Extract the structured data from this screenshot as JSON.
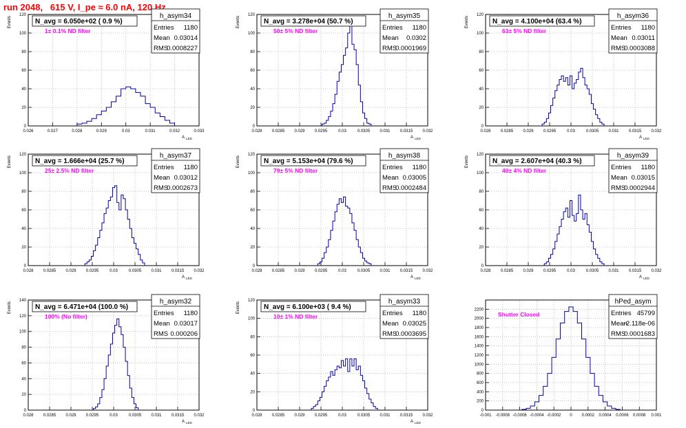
{
  "page": {
    "title": "run 2048,   615 V, I_pe ≈ 6.0 nA, 120 Hz",
    "colors": {
      "hist_line": "#0000aa",
      "note": "#ff00ff",
      "title": "#ff0000",
      "grid": "#b4b4b4"
    }
  },
  "stat_labels": [
    "Entries",
    "Mean",
    "RMS"
  ],
  "chart_data": [
    {
      "type": "histogram",
      "name": "h_asym34",
      "nlabel": "N_avg = 6.050e+02 ( 0.9 %)",
      "note": "1± 0.1% ND filter",
      "entries": "1180",
      "mean": "0.03014",
      "rms": "0.0008227",
      "xlim": [
        0.026,
        0.033
      ],
      "ylim": [
        0,
        120
      ],
      "xticks": [
        "0.026",
        "0.027",
        "0.028",
        "0.029",
        "0.03",
        "0.031",
        "0.032",
        "0.033"
      ],
      "xtick_values": [
        0.026,
        0.027,
        0.028,
        0.029,
        0.03,
        0.031,
        0.032,
        0.033
      ],
      "yticks": [
        "0",
        "20",
        "40",
        "60",
        "80",
        "100",
        "120"
      ],
      "ytick_values": [
        0,
        20,
        40,
        60,
        80,
        100,
        120
      ],
      "xlabel": "A",
      "xlabel_sub": "LED",
      "ylabel": "Events",
      "x": [
        0.0281,
        0.0283,
        0.0285,
        0.0287,
        0.0289,
        0.0291,
        0.0293,
        0.0295,
        0.0297,
        0.0299,
        0.0301,
        0.0303,
        0.0305,
        0.0307,
        0.0309,
        0.0311,
        0.0313,
        0.0315,
        0.0317,
        0.0319
      ],
      "values": [
        2,
        3,
        5,
        8,
        12,
        16,
        20,
        26,
        32,
        40,
        42,
        40,
        36,
        32,
        24,
        20,
        14,
        10,
        6,
        3
      ]
    },
    {
      "type": "histogram",
      "name": "h_asym35",
      "nlabel": "N_avg = 3.278e+04 (50.7 %)",
      "note": "50± 5% ND filter",
      "entries": "1180",
      "mean": "0.0302",
      "rms": "0.0001969",
      "xlim": [
        0.028,
        0.032
      ],
      "ylim": [
        0,
        120
      ],
      "xticks": [
        "0.028",
        "0.0285",
        "0.029",
        "0.0295",
        "0.03",
        "0.0305",
        "0.031",
        "0.0315",
        "0.032"
      ],
      "xtick_values": [
        0.028,
        0.0285,
        0.029,
        0.0295,
        0.03,
        0.0305,
        0.031,
        0.0315,
        0.032
      ],
      "yticks": [
        "0",
        "20",
        "40",
        "60",
        "80",
        "100",
        "120"
      ],
      "ytick_values": [
        0,
        20,
        40,
        60,
        80,
        100,
        120
      ],
      "xlabel": "A",
      "xlabel_sub": "LED",
      "ylabel": "Events",
      "x": [
        0.02955,
        0.0296,
        0.02965,
        0.0297,
        0.02975,
        0.0298,
        0.02985,
        0.0299,
        0.02995,
        0.03,
        0.03005,
        0.0301,
        0.03015,
        0.0302,
        0.03025,
        0.0303,
        0.03035,
        0.0304,
        0.03045,
        0.0305,
        0.03055,
        0.0306,
        0.03065
      ],
      "values": [
        2,
        3,
        6,
        10,
        16,
        24,
        34,
        48,
        58,
        66,
        76,
        84,
        100,
        108,
        88,
        82,
        66,
        44,
        26,
        14,
        8,
        3,
        2
      ]
    },
    {
      "type": "histogram",
      "name": "h_asym36",
      "nlabel": "N_avg = 4.100e+04 (63.4 %)",
      "note": "63± 5% ND filter",
      "entries": "1180",
      "mean": "0.03011",
      "rms": "0.0003088",
      "xlim": [
        0.028,
        0.032
      ],
      "ylim": [
        0,
        120
      ],
      "xticks": [
        "0.028",
        "0.0285",
        "0.029",
        "0.0295",
        "0.03",
        "0.0305",
        "0.031",
        "0.0315",
        "0.032"
      ],
      "xtick_values": [
        0.028,
        0.0285,
        0.029,
        0.0295,
        0.03,
        0.0305,
        0.031,
        0.0315,
        0.032
      ],
      "yticks": [
        "0",
        "20",
        "40",
        "60",
        "80",
        "100",
        "120"
      ],
      "ytick_values": [
        0,
        20,
        40,
        60,
        80,
        100,
        120
      ],
      "xlabel": "A",
      "xlabel_sub": "LED",
      "ylabel": "Events",
      "x": [
        0.02935,
        0.0294,
        0.02945,
        0.0295,
        0.02955,
        0.0296,
        0.02965,
        0.0297,
        0.02975,
        0.0298,
        0.02985,
        0.0299,
        0.02995,
        0.03,
        0.03005,
        0.0301,
        0.03015,
        0.0302,
        0.03025,
        0.0303,
        0.03035,
        0.0304,
        0.03045,
        0.0305,
        0.03055,
        0.0306,
        0.03065,
        0.0307,
        0.03075
      ],
      "values": [
        2,
        4,
        8,
        14,
        22,
        30,
        38,
        44,
        50,
        54,
        48,
        52,
        44,
        54,
        40,
        46,
        50,
        58,
        62,
        52,
        44,
        40,
        34,
        24,
        18,
        12,
        8,
        4,
        2
      ]
    },
    {
      "type": "histogram",
      "name": "h_asym37",
      "nlabel": "N_avg = 1.666e+04 (25.7 %)",
      "note": "25± 2.5% ND filter",
      "entries": "1180",
      "mean": "0.03012",
      "rms": "0.0002673",
      "xlim": [
        0.028,
        0.032
      ],
      "ylim": [
        0,
        120
      ],
      "xticks": [
        "0.028",
        "0.0285",
        "0.029",
        "0.0295",
        "0.03",
        "0.0305",
        "0.031",
        "0.0315",
        "0.032"
      ],
      "xtick_values": [
        0.028,
        0.0285,
        0.029,
        0.0295,
        0.03,
        0.0305,
        0.031,
        0.0315,
        0.032
      ],
      "yticks": [
        "0",
        "20",
        "40",
        "60",
        "80",
        "100",
        "120"
      ],
      "ytick_values": [
        0,
        20,
        40,
        60,
        80,
        100,
        120
      ],
      "xlabel": "A",
      "xlabel_sub": "LED",
      "ylabel": "Events",
      "x": [
        0.02935,
        0.0294,
        0.02945,
        0.0295,
        0.02955,
        0.0296,
        0.02965,
        0.0297,
        0.02975,
        0.0298,
        0.02985,
        0.0299,
        0.02995,
        0.03,
        0.03005,
        0.0301,
        0.03015,
        0.0302,
        0.03025,
        0.0303,
        0.03035,
        0.0304,
        0.03045,
        0.0305,
        0.03055,
        0.0306,
        0.03065,
        0.0307
      ],
      "values": [
        2,
        4,
        6,
        10,
        16,
        22,
        30,
        38,
        46,
        56,
        62,
        70,
        74,
        84,
        86,
        68,
        60,
        76,
        72,
        60,
        50,
        40,
        30,
        24,
        18,
        12,
        6,
        3
      ]
    },
    {
      "type": "histogram",
      "name": "h_asym38",
      "nlabel": "N_avg = 5.153e+04 (79.6 %)",
      "note": "79± 5% ND filter",
      "entries": "1180",
      "mean": "0.03005",
      "rms": "0.0002484",
      "xlim": [
        0.028,
        0.032
      ],
      "ylim": [
        0,
        120
      ],
      "xticks": [
        "0.028",
        "0.0285",
        "0.029",
        "0.0295",
        "0.03",
        "0.0305",
        "0.031",
        "0.0315",
        "0.032"
      ],
      "xtick_values": [
        0.028,
        0.0285,
        0.029,
        0.0295,
        0.03,
        0.0305,
        0.031,
        0.0315,
        0.032
      ],
      "yticks": [
        "0",
        "20",
        "40",
        "60",
        "80",
        "100",
        "120"
      ],
      "ytick_values": [
        0,
        20,
        40,
        60,
        80,
        100,
        120
      ],
      "xlabel": "A",
      "xlabel_sub": "LED",
      "ylabel": "Events",
      "x": [
        0.02945,
        0.0295,
        0.02955,
        0.0296,
        0.02965,
        0.0297,
        0.02975,
        0.0298,
        0.02985,
        0.0299,
        0.02995,
        0.03,
        0.03005,
        0.0301,
        0.03015,
        0.0302,
        0.03025,
        0.0303,
        0.03035,
        0.0304,
        0.03045,
        0.0305,
        0.03055,
        0.0306,
        0.03065
      ],
      "values": [
        2,
        4,
        8,
        14,
        20,
        28,
        38,
        48,
        58,
        66,
        72,
        68,
        74,
        64,
        62,
        56,
        46,
        38,
        28,
        20,
        14,
        8,
        5,
        3,
        2
      ]
    },
    {
      "type": "histogram",
      "name": "h_asym39",
      "nlabel": "N_avg = 2.607e+04 (40.3 %)",
      "note": "40± 4% ND filter",
      "entries": "1180",
      "mean": "0.03015",
      "rms": "0.0002944",
      "xlim": [
        0.028,
        0.032
      ],
      "ylim": [
        0,
        120
      ],
      "xticks": [
        "0.028",
        "0.0285",
        "0.029",
        "0.0295",
        "0.03",
        "0.0305",
        "0.031",
        "0.0315",
        "0.032"
      ],
      "xtick_values": [
        0.028,
        0.0285,
        0.029,
        0.0295,
        0.03,
        0.0305,
        0.031,
        0.0315,
        0.032
      ],
      "yticks": [
        "0",
        "20",
        "40",
        "60",
        "80",
        "100",
        "120"
      ],
      "ytick_values": [
        0,
        20,
        40,
        60,
        80,
        100,
        120
      ],
      "xlabel": "A",
      "xlabel_sub": "LED",
      "ylabel": "Events",
      "x": [
        0.0294,
        0.02945,
        0.0295,
        0.02955,
        0.0296,
        0.02965,
        0.0297,
        0.02975,
        0.0298,
        0.02985,
        0.0299,
        0.02995,
        0.03,
        0.03005,
        0.0301,
        0.03015,
        0.0302,
        0.03025,
        0.0303,
        0.03035,
        0.0304,
        0.03045,
        0.0305,
        0.03055,
        0.0306,
        0.03065,
        0.0307,
        0.03075
      ],
      "values": [
        2,
        4,
        8,
        12,
        18,
        26,
        34,
        42,
        50,
        58,
        62,
        52,
        70,
        54,
        48,
        56,
        76,
        60,
        50,
        56,
        44,
        36,
        26,
        18,
        12,
        8,
        4,
        2
      ]
    },
    {
      "type": "histogram",
      "name": "h_asym32",
      "nlabel": "N_avg = 6.471e+04 (100.0 %)",
      "note": "100% (No filter)",
      "entries": "1180",
      "mean": "0.03017",
      "rms": "0.000206",
      "xlim": [
        0.028,
        0.032
      ],
      "ylim": [
        0,
        140
      ],
      "xticks": [
        "0.028",
        "0.0285",
        "0.029",
        "0.0295",
        "0.03",
        "0.0305",
        "0.031",
        "0.0315",
        "0.032"
      ],
      "xtick_values": [
        0.028,
        0.0285,
        0.029,
        0.0295,
        0.03,
        0.0305,
        0.031,
        0.0315,
        0.032
      ],
      "yticks": [
        "0",
        "20",
        "40",
        "60",
        "80",
        "100",
        "120",
        "140"
      ],
      "ytick_values": [
        0,
        20,
        40,
        60,
        80,
        100,
        120,
        140
      ],
      "xlabel": "A",
      "xlabel_sub": "LED",
      "ylabel": "Events",
      "x": [
        0.02955,
        0.0296,
        0.02965,
        0.0297,
        0.02975,
        0.0298,
        0.02985,
        0.0299,
        0.02995,
        0.03,
        0.03005,
        0.0301,
        0.03015,
        0.0302,
        0.03025,
        0.0303,
        0.03035,
        0.0304,
        0.03045,
        0.0305,
        0.03055
      ],
      "values": [
        2,
        4,
        8,
        16,
        26,
        40,
        56,
        70,
        84,
        98,
        108,
        116,
        106,
        96,
        80,
        62,
        44,
        28,
        16,
        8,
        3
      ]
    },
    {
      "type": "histogram",
      "name": "h_asym33",
      "nlabel": "N_avg = 6.100e+03 ( 9.4 %)",
      "note": "10± 1% ND filter",
      "entries": "1180",
      "mean": "0.03025",
      "rms": "0.0003695",
      "xlim": [
        0.028,
        0.032
      ],
      "ylim": [
        0,
        120
      ],
      "xticks": [
        "0.028",
        "0.0285",
        "0.029",
        "0.0295",
        "0.03",
        "0.0305",
        "0.031",
        "0.0315",
        "0.032"
      ],
      "xtick_values": [
        0.028,
        0.0285,
        0.029,
        0.0295,
        0.03,
        0.0305,
        0.031,
        0.0315,
        0.032
      ],
      "yticks": [
        "0",
        "20",
        "40",
        "60",
        "80",
        "100",
        "120"
      ],
      "ytick_values": [
        0,
        20,
        40,
        60,
        80,
        100,
        120
      ],
      "xlabel": "A",
      "xlabel_sub": "LED",
      "ylabel": "Events",
      "x": [
        0.0293,
        0.02935,
        0.0294,
        0.02945,
        0.0295,
        0.02955,
        0.0296,
        0.02965,
        0.0297,
        0.02975,
        0.0298,
        0.02985,
        0.0299,
        0.02995,
        0.03,
        0.03005,
        0.0301,
        0.03015,
        0.0302,
        0.03025,
        0.0303,
        0.03035,
        0.0304,
        0.03045,
        0.0305,
        0.03055,
        0.0306,
        0.03065,
        0.0307,
        0.03075,
        0.0308
      ],
      "values": [
        2,
        4,
        6,
        10,
        14,
        20,
        26,
        32,
        36,
        42,
        38,
        44,
        48,
        46,
        54,
        48,
        56,
        42,
        56,
        48,
        56,
        44,
        48,
        38,
        32,
        24,
        18,
        12,
        8,
        4,
        2
      ]
    },
    {
      "type": "histogram",
      "name": "hPed_asym",
      "nlabel": "",
      "note": "Shutter Closed",
      "entries": "45799",
      "mean": "-2.118e-06",
      "rms": "0.0001683",
      "xlim": [
        -0.001,
        0.001
      ],
      "ylim": [
        0,
        2400
      ],
      "xticks": [
        "-0.001",
        "-0.0008",
        "-0.0006",
        "-0.0004",
        "-0.0002",
        "0",
        "0.0002",
        "0.0004",
        "0.0006",
        "0.0008",
        "0.001"
      ],
      "xtick_values": [
        -0.001,
        -0.0008,
        -0.0006,
        -0.0004,
        -0.0002,
        0,
        0.0002,
        0.0004,
        0.0006,
        0.0008,
        0.001
      ],
      "yticks": [
        "0",
        "200",
        "400",
        "600",
        "800",
        "1000",
        "1200",
        "1400",
        "1600",
        "1800",
        "2000",
        "2200"
      ],
      "ytick_values": [
        0,
        200,
        400,
        600,
        800,
        1000,
        1200,
        1400,
        1600,
        1800,
        2000,
        2200
      ],
      "xlabel": "",
      "xlabel_sub": "",
      "ylabel": "",
      "x": [
        -0.00055,
        -0.0005,
        -0.00045,
        -0.0004,
        -0.00035,
        -0.0003,
        -0.00025,
        -0.0002,
        -0.00015,
        -0.0001,
        -5e-05,
        0,
        5e-05,
        0.0001,
        0.00015,
        0.0002,
        0.00025,
        0.0003,
        0.00035,
        0.0004,
        0.00045,
        0.0005,
        0.00055
      ],
      "values": [
        15,
        40,
        90,
        180,
        320,
        520,
        800,
        1150,
        1550,
        1900,
        2150,
        2250,
        2150,
        1900,
        1550,
        1150,
        800,
        520,
        320,
        180,
        90,
        40,
        15
      ]
    }
  ]
}
